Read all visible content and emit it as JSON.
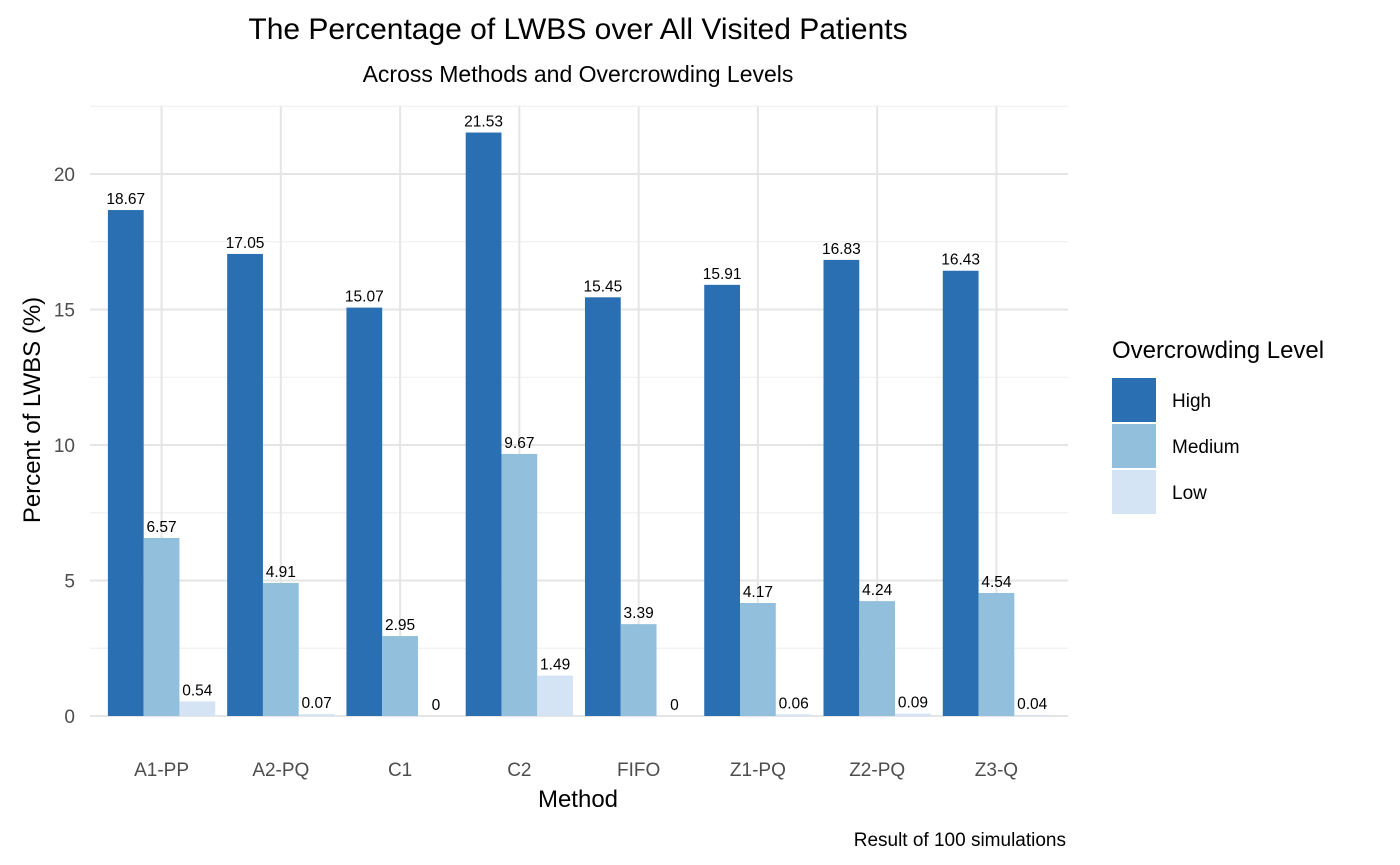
{
  "chart_data": {
    "type": "bar",
    "title": "The Percentage of LWBS over All Visited Patients",
    "subtitle": "Across Methods and Overcrowding Levels",
    "xlabel": "Method",
    "ylabel": "Percent of LWBS (%)",
    "caption": "Result of 100 simulations",
    "categories": [
      "A1-PP",
      "A2-PQ",
      "C1",
      "C2",
      "FIFO",
      "Z1-PQ",
      "Z2-PQ",
      "Z3-Q"
    ],
    "ylim": [
      0,
      22.5
    ],
    "yticks": [
      0,
      5,
      10,
      15,
      20
    ],
    "ytick_labels": [
      "0",
      "5",
      "10",
      "15",
      "20"
    ],
    "grid": true,
    "legend": {
      "title": "Overcrowding Level",
      "position": "right"
    },
    "series": [
      {
        "name": "High",
        "color": "#2b6fb3",
        "values": [
          18.67,
          17.05,
          15.07,
          21.53,
          15.45,
          15.91,
          16.83,
          16.43
        ],
        "labels": [
          "18.67",
          "17.05",
          "15.07",
          "21.53",
          "15.45",
          "15.91",
          "16.83",
          "16.43"
        ]
      },
      {
        "name": "Medium",
        "color": "#92bfdc",
        "values": [
          6.57,
          4.91,
          2.95,
          9.67,
          3.39,
          4.17,
          4.24,
          4.54
        ],
        "labels": [
          "6.57",
          "4.91",
          "2.95",
          "9.67",
          "3.39",
          "4.17",
          "4.24",
          "4.54"
        ]
      },
      {
        "name": "Low",
        "color": "#d5e4f4",
        "values": [
          0.54,
          0.07,
          0,
          1.49,
          0,
          0.06,
          0.09,
          0.04
        ],
        "labels": [
          "0.54",
          "0.07",
          "0",
          "1.49",
          "0",
          "0.06",
          "0.09",
          "0.04"
        ]
      }
    ]
  }
}
